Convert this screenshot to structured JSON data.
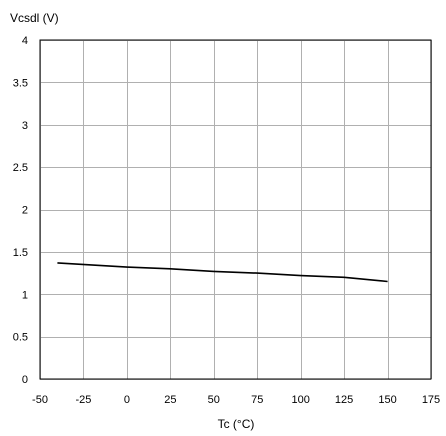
{
  "chart_data": {
    "type": "line",
    "title": "",
    "ylabel": "Vcsdl (V)",
    "xlabel": "Tc (°C)",
    "xlim": [
      -50,
      175
    ],
    "ylim": [
      0,
      4
    ],
    "xticks": [
      -50,
      -25,
      0,
      25,
      50,
      75,
      100,
      125,
      150,
      175
    ],
    "yticks": [
      0,
      0.5,
      1,
      1.5,
      2,
      2.5,
      3,
      3.5,
      4
    ],
    "grid": true,
    "series": [
      {
        "x": [
          -40,
          0,
          25,
          50,
          75,
          100,
          125,
          150
        ],
        "y": [
          1.37,
          1.32,
          1.3,
          1.27,
          1.25,
          1.22,
          1.2,
          1.15
        ]
      }
    ],
    "colors": {
      "line": "#000000",
      "grid": "#b0b0b0",
      "axis": "#000000"
    }
  }
}
